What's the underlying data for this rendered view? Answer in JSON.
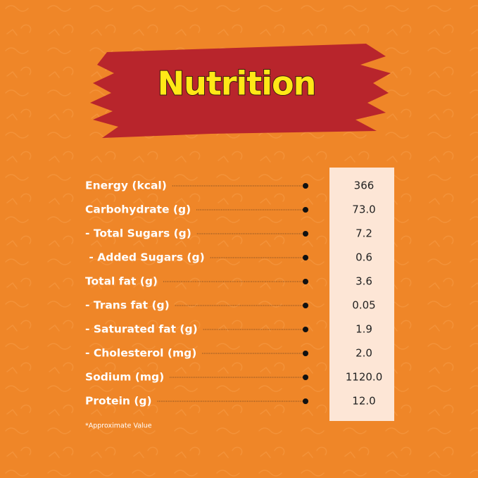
{
  "title": "Nutrition",
  "nutrients": [
    {
      "label": "Energy (kcal)",
      "value": "366"
    },
    {
      "label": "Carbohydrate (g)",
      "value": "73.0"
    },
    {
      "label": "- Total Sugars (g)",
      "value": "7.2"
    },
    {
      "label": " - Added Sugars (g)",
      "value": "0.6"
    },
    {
      "label": "Total fat (g)",
      "value": "3.6"
    },
    {
      "label": "- Trans fat (g)",
      "value": "0.05"
    },
    {
      "label": "- Saturated fat (g)",
      "value": "1.9"
    },
    {
      "label": "- Cholesterol (mg)",
      "value": "2.0"
    },
    {
      "label": "Sodium (mg)",
      "value": "1120.0"
    },
    {
      "label": "Protein (g)",
      "value": "12.0"
    }
  ],
  "footnote": "*Approximate Value"
}
